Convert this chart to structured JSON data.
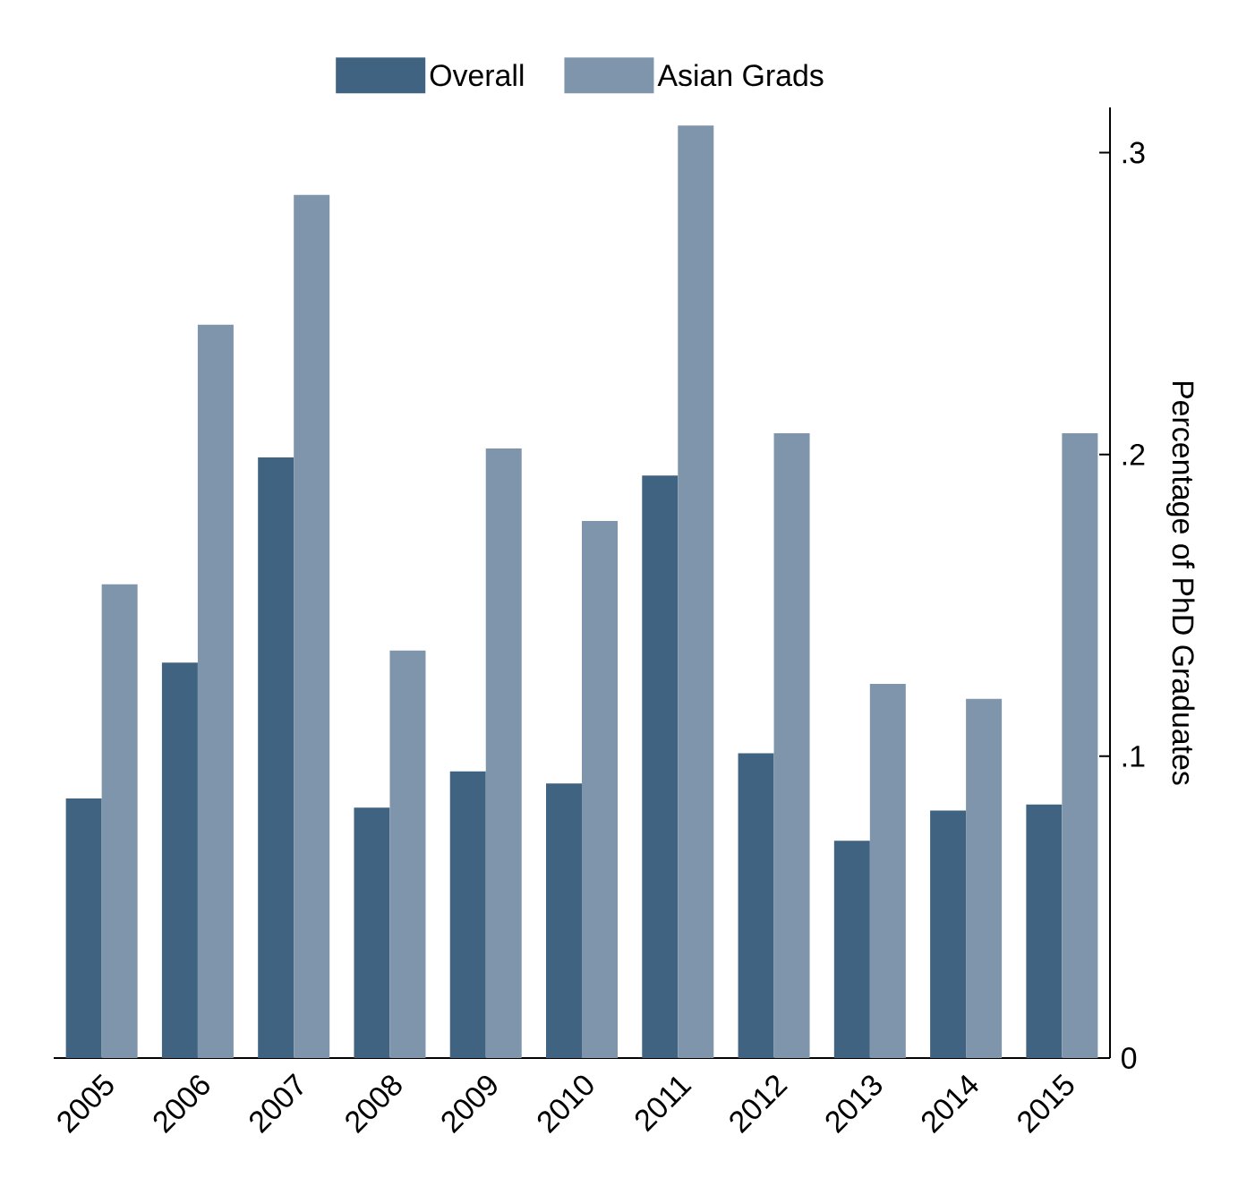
{
  "chart_data": {
    "type": "bar",
    "categories": [
      "2005",
      "2006",
      "2007",
      "2008",
      "2009",
      "2010",
      "2011",
      "2012",
      "2013",
      "2014",
      "2015"
    ],
    "series": [
      {
        "name": "Overall",
        "color": "#3f6380",
        "values": [
          0.086,
          0.131,
          0.199,
          0.083,
          0.095,
          0.091,
          0.193,
          0.101,
          0.072,
          0.082,
          0.084
        ]
      },
      {
        "name": "Asian Grads",
        "color": "#7f95ab",
        "values": [
          0.157,
          0.243,
          0.286,
          0.135,
          0.202,
          0.178,
          0.309,
          0.207,
          0.124,
          0.119,
          0.207
        ]
      }
    ],
    "ylabel": "Percentage of PhD Graduates",
    "ylim": [
      0,
      0.315
    ],
    "yticks": [
      0,
      {
        "value": 0.1,
        "label": ".1"
      },
      {
        "value": 0.2,
        "label": ".2"
      },
      {
        "value": 0.3,
        "label": ".3"
      }
    ],
    "legend": "top",
    "grid": false
  }
}
